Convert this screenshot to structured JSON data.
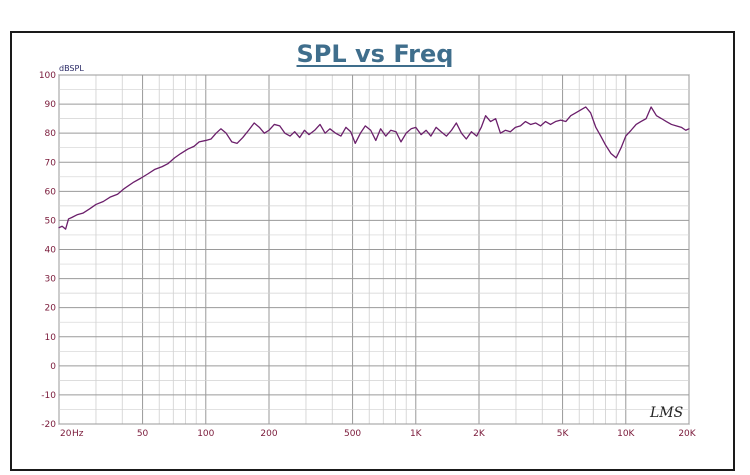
{
  "chart_data": {
    "type": "line",
    "title": "SPL vs Freq",
    "ylabel": "dBSPL",
    "xlabel": "",
    "x_scale": "log",
    "xlim": [
      20,
      20000
    ],
    "ylim": [
      -20,
      100
    ],
    "grid": true,
    "y_ticks": [
      "100",
      "90",
      "80",
      "70",
      "60",
      "50",
      "40",
      "30",
      "20",
      "10",
      "0",
      "-10",
      "-20"
    ],
    "x_ticks": [
      {
        "value": 20,
        "label": "20"
      },
      {
        "value": 50,
        "label": "50"
      },
      {
        "value": 100,
        "label": "100"
      },
      {
        "value": 200,
        "label": "200"
      },
      {
        "value": 500,
        "label": "500"
      },
      {
        "value": 1000,
        "label": "1K"
      },
      {
        "value": 2000,
        "label": "2K"
      },
      {
        "value": 5000,
        "label": "5K"
      },
      {
        "value": 10000,
        "label": "10K"
      },
      {
        "value": 20000,
        "label": "20K"
      }
    ],
    "x_unit_label": "Hz",
    "series": [
      {
        "color": "#6b1f6b",
        "points": [
          [
            20,
            47.5
          ],
          [
            20.7,
            48
          ],
          [
            21.5,
            47
          ],
          [
            22.2,
            50.5
          ],
          [
            23,
            51
          ],
          [
            24.5,
            52
          ],
          [
            26,
            52.5
          ],
          [
            28,
            54
          ],
          [
            30,
            55.5
          ],
          [
            32.5,
            56.5
          ],
          [
            35,
            58
          ],
          [
            38,
            59
          ],
          [
            41,
            61
          ],
          [
            45,
            63
          ],
          [
            49,
            64.5
          ],
          [
            53,
            66
          ],
          [
            57,
            67.5
          ],
          [
            62,
            68.5
          ],
          [
            66,
            69.5
          ],
          [
            71,
            71.5
          ],
          [
            76,
            73
          ],
          [
            82,
            74.5
          ],
          [
            88,
            75.5
          ],
          [
            93,
            77
          ],
          [
            100,
            77.5
          ],
          [
            106,
            78
          ],
          [
            112,
            80
          ],
          [
            118,
            81.5
          ],
          [
            125,
            80
          ],
          [
            133,
            77
          ],
          [
            141,
            76.5
          ],
          [
            150,
            78.5
          ],
          [
            160,
            81
          ],
          [
            170,
            83.5
          ],
          [
            180,
            82
          ],
          [
            190,
            80
          ],
          [
            200,
            81
          ],
          [
            212,
            83
          ],
          [
            225,
            82.5
          ],
          [
            238,
            80
          ],
          [
            252,
            79
          ],
          [
            265,
            80.5
          ],
          [
            280,
            78.5
          ],
          [
            295,
            81
          ],
          [
            310,
            79.5
          ],
          [
            330,
            81
          ],
          [
            350,
            83
          ],
          [
            370,
            80
          ],
          [
            390,
            81.5
          ],
          [
            415,
            80
          ],
          [
            440,
            79
          ],
          [
            465,
            82
          ],
          [
            490,
            80.5
          ],
          [
            515,
            76.5
          ],
          [
            545,
            80
          ],
          [
            575,
            82.5
          ],
          [
            610,
            81
          ],
          [
            645,
            77.5
          ],
          [
            680,
            81.5
          ],
          [
            720,
            79
          ],
          [
            760,
            81
          ],
          [
            805,
            80.5
          ],
          [
            850,
            77
          ],
          [
            900,
            80
          ],
          [
            950,
            81.5
          ],
          [
            1000,
            82
          ],
          [
            1060,
            79.5
          ],
          [
            1120,
            81
          ],
          [
            1180,
            79
          ],
          [
            1250,
            82
          ],
          [
            1320,
            80.5
          ],
          [
            1400,
            79
          ],
          [
            1480,
            81
          ],
          [
            1560,
            83.5
          ],
          [
            1650,
            80
          ],
          [
            1740,
            78
          ],
          [
            1840,
            80.5
          ],
          [
            1950,
            79
          ],
          [
            2050,
            82
          ],
          [
            2150,
            86
          ],
          [
            2270,
            84
          ],
          [
            2400,
            85
          ],
          [
            2530,
            80
          ],
          [
            2670,
            81
          ],
          [
            2820,
            80.5
          ],
          [
            2980,
            82
          ],
          [
            3150,
            82.5
          ],
          [
            3330,
            84
          ],
          [
            3520,
            83
          ],
          [
            3720,
            83.5
          ],
          [
            3930,
            82.5
          ],
          [
            4150,
            84
          ],
          [
            4380,
            83
          ],
          [
            4630,
            84
          ],
          [
            4900,
            84.5
          ],
          [
            5180,
            84
          ],
          [
            5470,
            86
          ],
          [
            5780,
            87
          ],
          [
            6100,
            88
          ],
          [
            6450,
            89
          ],
          [
            6800,
            87
          ],
          [
            7200,
            82
          ],
          [
            7600,
            79
          ],
          [
            8000,
            76
          ],
          [
            8500,
            73
          ],
          [
            9000,
            71.5
          ],
          [
            9500,
            75
          ],
          [
            10000,
            79
          ],
          [
            10600,
            81
          ],
          [
            11200,
            83
          ],
          [
            11800,
            84
          ],
          [
            12500,
            85
          ],
          [
            13200,
            89
          ],
          [
            14000,
            86
          ],
          [
            14800,
            85
          ],
          [
            15600,
            84
          ],
          [
            16500,
            83
          ],
          [
            17400,
            82.5
          ],
          [
            18400,
            82
          ],
          [
            19300,
            81
          ],
          [
            20000,
            81.5
          ]
        ]
      }
    ]
  },
  "logo": {
    "text": "LMS"
  }
}
